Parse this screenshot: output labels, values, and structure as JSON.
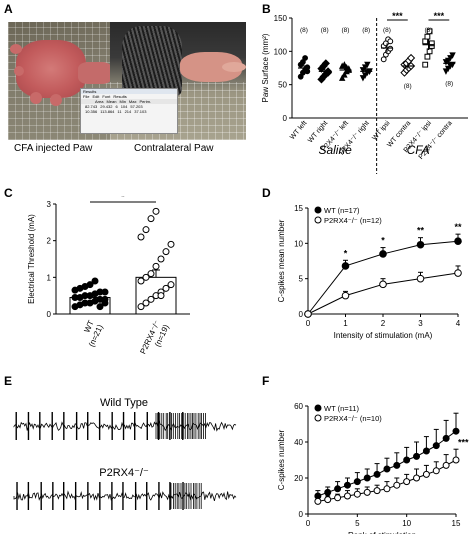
{
  "panels": {
    "A": {
      "label": "A",
      "captions": [
        "CFA injected Paw",
        "Contralateral Paw"
      ],
      "inset_text": {
        "title": "Results",
        "menu": [
          "File",
          "Edit",
          "Font",
          "Results"
        ],
        "header": [
          "Area",
          "Mean",
          "Min",
          "Max",
          "Perim."
        ],
        "rows": [
          [
            "82.743",
            "29.432",
            "6",
            "104",
            "57.203"
          ],
          [
            "10.356",
            "113.864",
            "11",
            "214",
            "37.103"
          ]
        ]
      }
    },
    "B": {
      "label": "B",
      "ylabel": "Paw Surface (mm²)",
      "group_labels": [
        "Saline",
        "CFA"
      ],
      "counts": [
        "(8)",
        "(8)",
        "(8)",
        "(8)",
        "(8)",
        "(8)",
        "(8)",
        "(8)"
      ],
      "significance": [
        "***",
        "***"
      ]
    },
    "C": {
      "label": "C",
      "significance": "*"
    },
    "D": {
      "label": "D",
      "significance": [
        "*",
        "*",
        "**",
        "**"
      ]
    },
    "E": {
      "label": "E",
      "trace_titles": [
        "Wild Type",
        "P2RX4⁻/⁻"
      ]
    },
    "F": {
      "label": "F",
      "significance": "***"
    }
  },
  "chart_data": [
    {
      "panel": "B",
      "type": "scatter",
      "ylabel": "Paw Surface (mm²)",
      "ylim": [
        0,
        150
      ],
      "yticks": [
        0,
        50,
        100,
        150
      ],
      "categories": [
        "WT left",
        "WT right",
        "P2X4⁻/⁻ left",
        "P2X4⁻/⁻ right",
        "WT ipsi",
        "WT contra",
        "P2X4⁻/⁻ ipsi",
        "P2X4⁻/⁻ contra"
      ],
      "means": [
        75,
        70,
        72,
        70,
        105,
        78,
        110,
        82
      ],
      "sem": [
        5,
        5,
        5,
        4,
        7,
        4,
        8,
        4
      ],
      "points": [
        [
          62,
          68,
          72,
          76,
          80,
          84,
          90,
          70
        ],
        [
          58,
          62,
          66,
          70,
          74,
          78,
          82,
          68
        ],
        [
          60,
          65,
          70,
          74,
          78,
          80,
          76,
          72
        ],
        [
          60,
          64,
          68,
          70,
          72,
          76,
          80,
          70
        ],
        [
          88,
          95,
          100,
          104,
          108,
          112,
          118,
          115
        ],
        [
          68,
          72,
          75,
          78,
          80,
          82,
          86,
          90
        ],
        [
          80,
          92,
          100,
          108,
          115,
          122,
          130,
          112
        ],
        [
          70,
          74,
          78,
          80,
          84,
          86,
          90,
          94
        ]
      ],
      "markers": [
        "circle-filled",
        "diamond-filled",
        "triangle-filled",
        "triangle-down-filled",
        "circle-open",
        "diamond-open",
        "square-open",
        "triangle-down-filled"
      ]
    },
    {
      "panel": "C",
      "type": "bar",
      "ylabel": "Electrical Threshold (mA)",
      "ylim": [
        0,
        3
      ],
      "yticks": [
        0,
        1,
        2,
        3
      ],
      "categories": [
        "WT\n(n=21)",
        "P2RX4⁻/⁻\n(n=19)"
      ],
      "values": [
        0.45,
        1.0
      ],
      "sem": [
        0.08,
        0.2
      ],
      "points": [
        [
          0.2,
          0.25,
          0.3,
          0.3,
          0.35,
          0.4,
          0.4,
          0.45,
          0.45,
          0.5,
          0.5,
          0.55,
          0.6,
          0.6,
          0.65,
          0.7,
          0.75,
          0.8,
          0.9,
          0.2,
          0.3
        ],
        [
          0.2,
          0.3,
          0.4,
          0.5,
          0.6,
          0.7,
          0.8,
          0.9,
          1.0,
          1.1,
          1.3,
          1.5,
          1.7,
          1.9,
          2.1,
          2.3,
          2.6,
          2.8,
          0.5
        ]
      ]
    },
    {
      "panel": "D",
      "type": "line",
      "xlabel": "Intensity of stimulation (mA)",
      "ylabel": "C-spikes mean number",
      "xlim": [
        0,
        4
      ],
      "ylim": [
        0,
        15
      ],
      "xticks": [
        0,
        1,
        2,
        3,
        4
      ],
      "yticks": [
        0,
        5,
        10,
        15
      ],
      "x": [
        0,
        1,
        2,
        3,
        4
      ],
      "series": [
        {
          "name": "WT (n=17)",
          "values": [
            0,
            6.8,
            8.5,
            9.8,
            10.3
          ],
          "err": [
            0,
            0.8,
            0.9,
            1.0,
            1.0
          ],
          "marker": "filled"
        },
        {
          "name": "P2RX4⁻/⁻ (n=12)",
          "values": [
            0,
            2.6,
            4.2,
            5.0,
            5.8
          ],
          "err": [
            0,
            0.6,
            0.8,
            0.9,
            1.0
          ],
          "marker": "open"
        }
      ],
      "legend": "top-left"
    },
    {
      "panel": "F",
      "type": "line",
      "xlabel": "Rank of stimulation",
      "ylabel": "C-spikes number",
      "xlim": [
        0,
        15
      ],
      "ylim": [
        0,
        60
      ],
      "xticks": [
        0,
        5,
        10,
        15
      ],
      "yticks": [
        0,
        20,
        40,
        60
      ],
      "x": [
        1,
        2,
        3,
        4,
        5,
        6,
        7,
        8,
        9,
        10,
        11,
        12,
        13,
        14,
        15
      ],
      "series": [
        {
          "name": "WT (n=11)",
          "values": [
            10,
            12,
            14,
            16,
            18,
            20,
            22,
            25,
            27,
            30,
            32,
            35,
            38,
            42,
            46
          ],
          "err": [
            3,
            3,
            4,
            4,
            5,
            5,
            6,
            6,
            7,
            7,
            8,
            8,
            9,
            10,
            10
          ],
          "marker": "filled"
        },
        {
          "name": "P2RX4⁻/⁻ (n=10)",
          "values": [
            7,
            8,
            9,
            10,
            11,
            12,
            13,
            14,
            16,
            18,
            20,
            22,
            24,
            27,
            30
          ],
          "err": [
            2,
            2,
            2,
            3,
            3,
            3,
            3,
            4,
            4,
            4,
            5,
            5,
            5,
            6,
            6
          ],
          "marker": "open"
        }
      ],
      "legend": "top-left"
    }
  ]
}
